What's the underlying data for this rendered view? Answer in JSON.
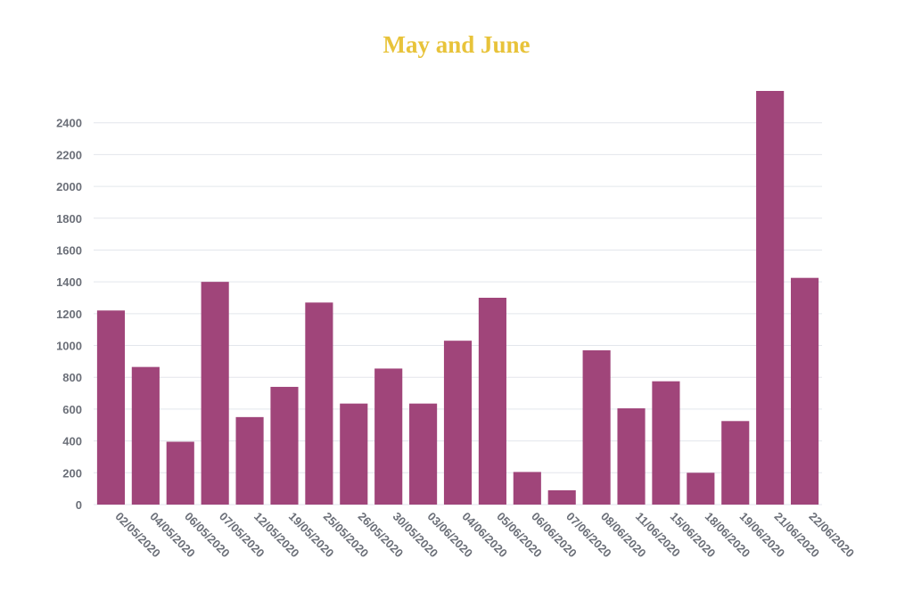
{
  "chart_data": {
    "type": "bar",
    "title": "May and June",
    "xlabel": "",
    "ylabel": "",
    "ylim": [
      0,
      2600
    ],
    "yticks": [
      0,
      200,
      400,
      600,
      800,
      1000,
      1200,
      1400,
      1600,
      1800,
      2000,
      2200,
      2400
    ],
    "grid": true,
    "legend": "none",
    "bar_color": "#a0457a",
    "title_color": "#e8c33a",
    "categories": [
      "02/05/2020",
      "04/05/2020",
      "06/05/2020",
      "07/05/2020",
      "12/05/2020",
      "19/05/2020",
      "25/05/2020",
      "26/05/2020",
      "30/05/2020",
      "03/06/2020",
      "04/06/2020",
      "05/06/2020",
      "06/06/2020",
      "07/06/2020",
      "08/06/2020",
      "11/06/2020",
      "15/06/2020",
      "18/06/2020",
      "19/06/2020",
      "21/06/2020",
      "22/06/2020"
    ],
    "values": [
      1220,
      865,
      395,
      1400,
      550,
      740,
      1270,
      635,
      855,
      635,
      1030,
      1300,
      205,
      90,
      970,
      605,
      775,
      200,
      525,
      2600,
      1425
    ]
  }
}
